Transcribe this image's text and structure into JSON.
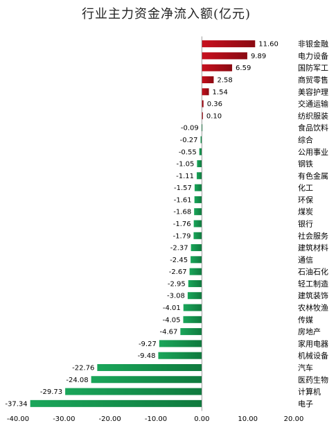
{
  "chart_data": {
    "type": "bar",
    "orientation": "horizontal",
    "title": "行业主力资金净流入额(亿元)",
    "xlabel": "",
    "ylabel": "",
    "xlim": [
      -40,
      20
    ],
    "xticks": [
      "-40.00",
      "-30.00",
      "-20.00",
      "-10.00",
      "0.00",
      "10.00",
      "20.00"
    ],
    "grid": false,
    "legend": "none",
    "categories": [
      "非银金融",
      "电力设备",
      "国防军工",
      "商贸零售",
      "美容护理",
      "交通运输",
      "纺织服装",
      "食品饮料",
      "综合",
      "公用事业",
      "钢铁",
      "有色金属",
      "化工",
      "环保",
      "煤炭",
      "银行",
      "社会服务",
      "建筑材料",
      "通信",
      "石油石化",
      "轻工制造",
      "建筑装饰",
      "农林牧渔",
      "传媒",
      "房地产",
      "家用电器",
      "机械设备",
      "汽车",
      "医药生物",
      "计算机",
      "电子"
    ],
    "values": [
      11.6,
      9.89,
      6.59,
      2.58,
      1.54,
      0.36,
      0.1,
      -0.09,
      -0.27,
      -0.55,
      -1.05,
      -1.11,
      -1.57,
      -1.61,
      -1.68,
      -1.76,
      -1.79,
      -2.37,
      -2.45,
      -2.67,
      -2.95,
      -3.08,
      -4.01,
      -4.05,
      -4.67,
      -9.27,
      -9.48,
      -22.76,
      -24.08,
      -29.73,
      -37.34
    ],
    "value_labels": [
      "11.60",
      "9.89",
      "6.59",
      "2.58",
      "1.54",
      "0.36",
      "0.10",
      "-0.09",
      "-0.27",
      "-0.55",
      "-1.05",
      "-1.11",
      "-1.57",
      "-1.61",
      "-1.68",
      "-1.76",
      "-1.79",
      "-2.37",
      "-2.45",
      "-2.67",
      "-2.95",
      "-3.08",
      "-4.01",
      "-4.05",
      "-4.67",
      "-9.27",
      "-9.48",
      "-22.76",
      "-24.08",
      "-29.73",
      "-37.34"
    ],
    "colors": {
      "positive": "#c8101e",
      "positive_dark": "#8a0a12",
      "negative": "#1aa65a",
      "negative_dark": "#0f7a3e"
    }
  }
}
